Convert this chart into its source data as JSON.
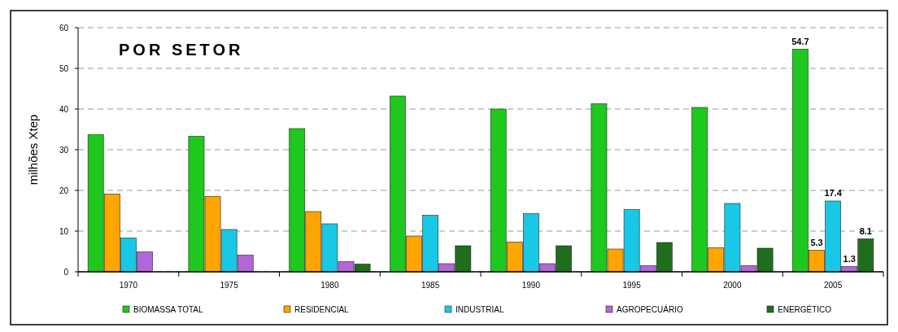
{
  "chart_data": {
    "type": "bar",
    "title": "POR SETOR",
    "ylabel": "milhões Xtep",
    "categories": [
      "1970",
      "1975",
      "1980",
      "1985",
      "1990",
      "1995",
      "2000",
      "2005"
    ],
    "series": [
      {
        "name": "BIOMASSA TOTAL",
        "color": "#1ec81e",
        "values": [
          33.7,
          33.3,
          35.2,
          43.2,
          40.0,
          41.3,
          40.4,
          54.7
        ],
        "value_labels": [
          null,
          null,
          null,
          null,
          null,
          null,
          null,
          "54.7"
        ]
      },
      {
        "name": "RESIDENCIAL",
        "color": "#ffa500",
        "values": [
          19.1,
          18.5,
          14.8,
          8.8,
          7.3,
          5.6,
          5.9,
          5.3
        ],
        "value_labels": [
          null,
          null,
          null,
          null,
          null,
          null,
          null,
          "5.3"
        ]
      },
      {
        "name": "INDUSTRIAL",
        "color": "#19c8e6",
        "values": [
          8.3,
          10.4,
          11.8,
          13.9,
          14.3,
          15.3,
          16.8,
          17.4
        ],
        "value_labels": [
          null,
          null,
          null,
          null,
          null,
          null,
          null,
          "17.4"
        ]
      },
      {
        "name": "AGROPECUÁRIO",
        "color": "#b366d9",
        "values": [
          4.9,
          4.1,
          2.5,
          2.0,
          2.0,
          1.5,
          1.5,
          1.3
        ],
        "value_labels": [
          null,
          null,
          null,
          null,
          null,
          null,
          null,
          "1.3"
        ]
      },
      {
        "name": "ENERGÉTICO",
        "color": "#1e6e1e",
        "values": [
          null,
          null,
          1.9,
          6.4,
          6.4,
          7.2,
          5.8,
          8.1
        ],
        "value_labels": [
          null,
          null,
          null,
          null,
          null,
          null,
          null,
          "8.1"
        ]
      }
    ],
    "ylim": [
      0,
      60
    ],
    "yticks": [
      0,
      10,
      20,
      30,
      40,
      50,
      60
    ],
    "grid": "y",
    "legend": "bottom"
  }
}
